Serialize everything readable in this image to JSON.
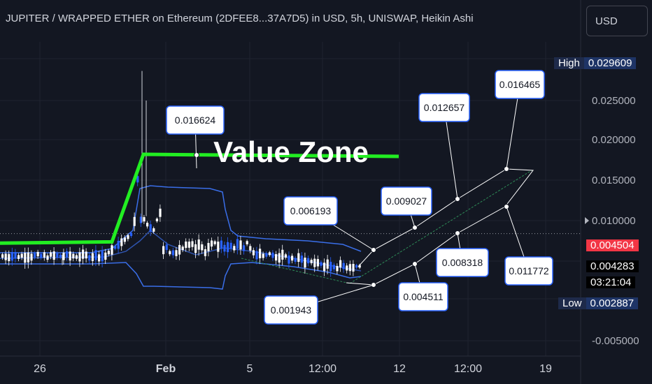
{
  "header": {
    "title": "JUPITER / WRAPPED ETHER on Ethereum (2DFEE8...37A7D5) in USD, 5h, UNISWAP, Heikin Ashi",
    "currency_button": "USD"
  },
  "price_tags": {
    "high_label": "High",
    "high_value": "0.029609",
    "low_label": "Low",
    "low_value": "0.002887",
    "last_price": "0.004504",
    "current_price": "0.004283",
    "countdown": "03:21:04"
  },
  "colors": {
    "background": "#131722",
    "value_zone_line": "#22ee22",
    "bollinger_band": "#3a6ee8",
    "candle_up": "#ffffff",
    "candle_down": "#2962ff",
    "callout_border": "#2962ff",
    "last_price_tag": "#f23645"
  },
  "chart_data": {
    "type": "candlestick",
    "style": "Heikin Ashi",
    "symbol": "JUPITER / WRAPPED ETHER",
    "interval": "5h",
    "exchange": "UNISWAP",
    "y_ticks": [
      "0.025000",
      "0.020000",
      "0.015000",
      "0.010000",
      "-0.005000"
    ],
    "ylim": [
      -0.0055,
      0.0325
    ],
    "x_ticks": [
      "26",
      "Feb",
      "5",
      "12:00",
      "12",
      "12:00",
      "19"
    ],
    "high": 0.029609,
    "low": 0.002887,
    "last_price": 0.004504,
    "current_price": 0.004283,
    "annotation_text": "Value Zone",
    "value_zone_level": 0.016624,
    "callout_labels": [
      "0.016624",
      "0.006193",
      "0.001943",
      "0.009027",
      "0.004511",
      "0.012657",
      "0.008318",
      "0.016465",
      "0.011772"
    ],
    "projection_path": [
      0.004283,
      0.001943,
      0.006193,
      0.004511,
      0.009027,
      0.008318,
      0.012657,
      0.011772,
      0.016465
    ]
  }
}
